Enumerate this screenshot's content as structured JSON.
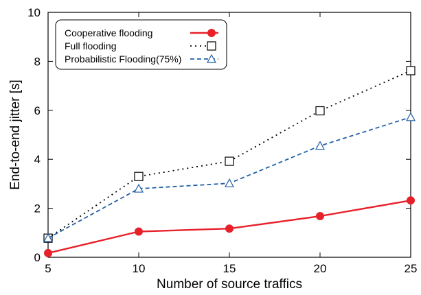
{
  "chart_data": {
    "type": "line",
    "title": "",
    "xlabel": "Number of source traffics",
    "ylabel": "End-to-end jitter [s]",
    "x": [
      5,
      10,
      15,
      20,
      25
    ],
    "xlim": [
      5,
      25
    ],
    "ylim": [
      0,
      10
    ],
    "xticks": [
      "5",
      "10",
      "15",
      "20",
      "25"
    ],
    "yticks": [
      "0",
      "2",
      "4",
      "6",
      "8",
      "10"
    ],
    "grid": false,
    "legend_position": "top-left",
    "series": [
      {
        "name": "Cooperative flooding",
        "values": [
          0.17,
          1.05,
          1.17,
          1.68,
          2.32
        ],
        "color": "#e8202a",
        "line_style": "solid",
        "marker": "filled-circle"
      },
      {
        "name": "Full flooding",
        "values": [
          0.78,
          3.3,
          3.92,
          5.98,
          7.62
        ],
        "color": "#000000",
        "line_style": "dotted",
        "marker": "open-square"
      },
      {
        "name": "Probabilistic Flooding(75%)",
        "values": [
          0.78,
          2.8,
          3.02,
          4.55,
          5.72
        ],
        "color": "#1f5ea8",
        "line_style": "dashed",
        "marker": "open-triangle"
      }
    ]
  }
}
